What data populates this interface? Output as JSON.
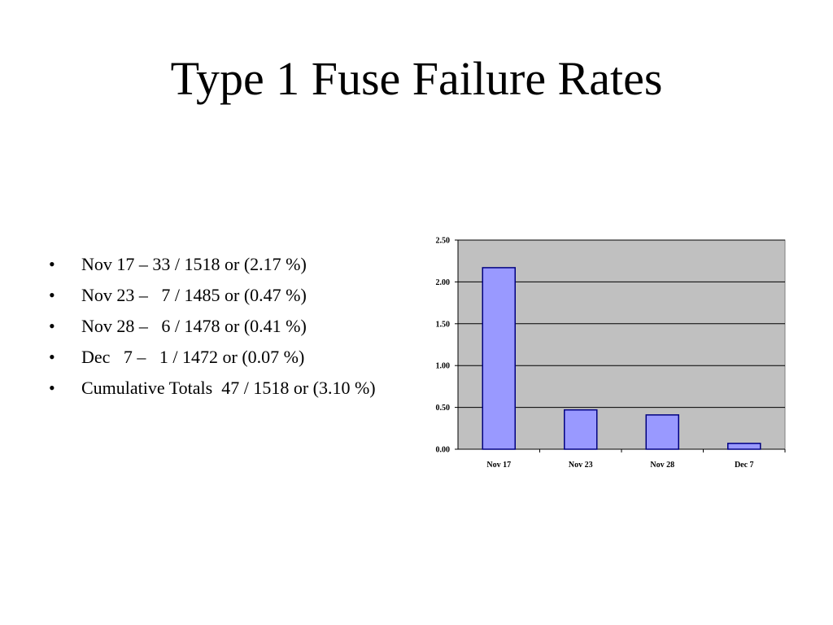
{
  "slide": {
    "title": "Type 1 Fuse Failure Rates",
    "bullets": [
      "Nov 17 – 33 / 1518 or (2.17 %)",
      "Nov 23 –   7 / 1485 or (0.47 %)",
      "Nov 28 –   6 / 1478 or (0.41 %)",
      "Dec   7 –   1 / 1472 or (0.07 %)",
      "Cumulative Totals  47 / 1518 or (3.10 %)"
    ],
    "bullet_symbol": "•"
  },
  "chart_data": {
    "type": "bar",
    "categories": [
      "Nov 17",
      "Nov 23",
      "Nov 28",
      "Dec 7"
    ],
    "values": [
      2.17,
      0.47,
      0.41,
      0.07
    ],
    "ylim": [
      0,
      2.5
    ],
    "yticks": [
      "0.00",
      "0.50",
      "1.00",
      "1.50",
      "2.00",
      "2.50"
    ],
    "ytick_values": [
      0,
      0.5,
      1,
      1.5,
      2,
      2.5
    ],
    "grid": true,
    "legend": "none",
    "colors": {
      "plot_background": "#c0c0c0",
      "bar_fill": "#9999ff",
      "bar_stroke": "#000080",
      "gridline": "#000000"
    }
  }
}
